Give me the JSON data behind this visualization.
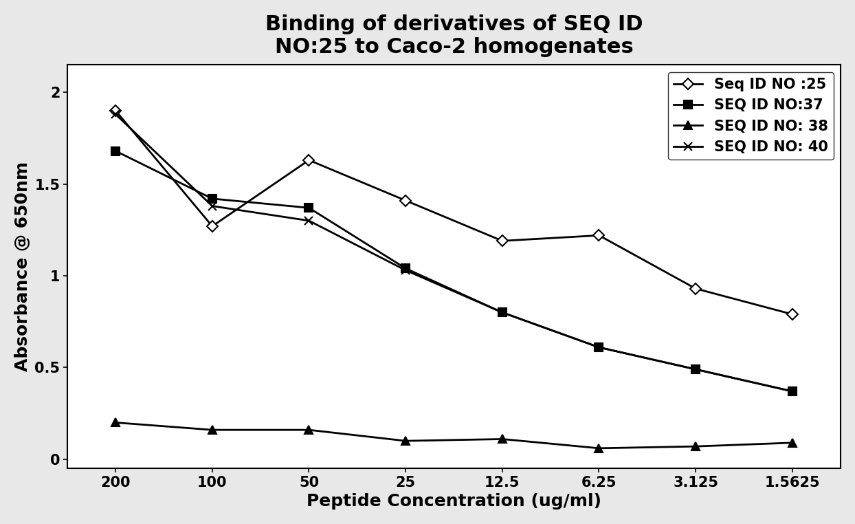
{
  "title_line1": "Binding of derivatives of SEQ ID",
  "title_line2": "NO:25 to Caco-2 homogenates",
  "xlabel": "Peptide Concentration (ug/ml)",
  "ylabel": "Absorbance @ 650nm",
  "x_labels": [
    "200",
    "100",
    "50",
    "25",
    "12.5",
    "6.25",
    "3.125",
    "1.5625"
  ],
  "x_positions": [
    0,
    1,
    2,
    3,
    4,
    5,
    6,
    7
  ],
  "series": [
    {
      "label": "Seq ID NO :25",
      "values": [
        1.9,
        1.27,
        1.63,
        1.41,
        1.19,
        1.22,
        0.93,
        0.79
      ],
      "marker": "D",
      "color": "#000000",
      "linewidth": 2.0,
      "markersize": 8
    },
    {
      "label": "SEQ ID NO:37",
      "values": [
        1.68,
        1.42,
        1.37,
        1.04,
        0.8,
        0.61,
        0.49,
        0.37
      ],
      "marker": "s",
      "color": "#000000",
      "linewidth": 2.0,
      "markersize": 8
    },
    {
      "label": "SEQ ID NO: 38",
      "values": [
        0.2,
        0.16,
        0.16,
        0.1,
        0.11,
        0.06,
        0.07,
        0.09
      ],
      "marker": "^",
      "color": "#000000",
      "linewidth": 2.0,
      "markersize": 8
    },
    {
      "label": "SEQ ID NO: 40",
      "values": [
        1.88,
        1.38,
        1.3,
        1.03,
        0.8,
        0.61,
        0.49,
        0.37
      ],
      "marker": "x",
      "color": "#000000",
      "linewidth": 2.0,
      "markersize": 9
    }
  ],
  "ylim": [
    -0.05,
    2.15
  ],
  "yticks": [
    0,
    0.5,
    1,
    1.5,
    2
  ],
  "title_fontsize": 22,
  "label_fontsize": 18,
  "tick_fontsize": 15,
  "legend_fontsize": 15,
  "background_color": "#ffffff",
  "figure_background": "#e8e8e8"
}
